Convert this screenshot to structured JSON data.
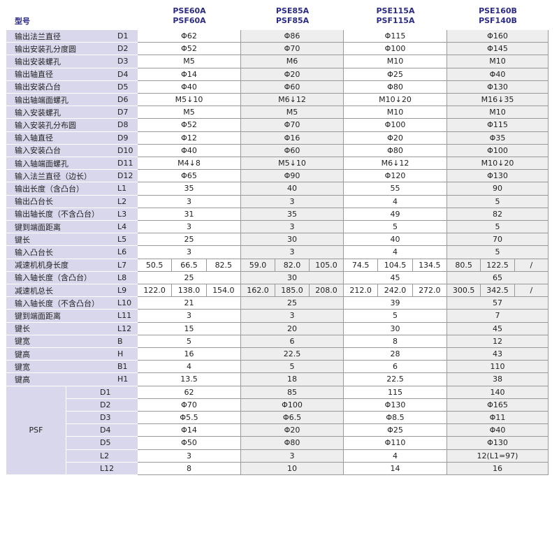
{
  "header": {
    "label": "型号",
    "models": [
      [
        "PSE60A",
        "PSF60A"
      ],
      [
        "PSE85A",
        "PSF85A"
      ],
      [
        "PSE115A",
        "PSF115A"
      ],
      [
        "PSE160B",
        "PSF140B"
      ]
    ]
  },
  "rows": [
    {
      "name": "输出法兰直径",
      "code": "D1",
      "values": [
        "Φ62",
        "Φ86",
        "Φ115",
        "Φ160"
      ]
    },
    {
      "name": "输出安装孔分度圆",
      "code": "D2",
      "values": [
        "Φ52",
        "Φ70",
        "Φ100",
        "Φ145"
      ]
    },
    {
      "name": "输出安装螺孔",
      "code": "D3",
      "values": [
        "M5",
        "M6",
        "M10",
        "M10"
      ]
    },
    {
      "name": "输出轴直径",
      "code": "D4",
      "values": [
        "Φ14",
        "Φ20",
        "Φ25",
        "Φ40"
      ]
    },
    {
      "name": "输出安装凸台",
      "code": "D5",
      "values": [
        "Φ40",
        "Φ60",
        "Φ80",
        "Φ130"
      ]
    },
    {
      "name": "输出轴端面螺孔",
      "code": "D6",
      "values": [
        "M5↓10",
        "M6↓12",
        "M10↓20",
        "M16↓35"
      ]
    },
    {
      "name": "输入安装螺孔",
      "code": "D7",
      "values": [
        "M5",
        "M5",
        "M10",
        "M10"
      ]
    },
    {
      "name": "输入安装孔分布圆",
      "code": "D8",
      "values": [
        "Φ52",
        "Φ70",
        "Φ100",
        "Φ115"
      ]
    },
    {
      "name": "输入轴直径",
      "code": "D9",
      "values": [
        "Φ12",
        "Φ16",
        "Φ20",
        "Φ35"
      ]
    },
    {
      "name": "输入安装凸台",
      "code": "D10",
      "values": [
        "Φ40",
        "Φ60",
        "Φ80",
        "Φ100"
      ]
    },
    {
      "name": "输入轴端面螺孔",
      "code": "D11",
      "values": [
        "M4↓8",
        "M5↓10",
        "M6↓12",
        "M10↓20"
      ]
    },
    {
      "name": "输入法兰直径（边长）",
      "code": "D12",
      "values": [
        "Φ65",
        "Φ90",
        "Φ120",
        "Φ130"
      ]
    },
    {
      "name": "输出长度（含凸台）",
      "code": "L1",
      "values": [
        "35",
        "40",
        "55",
        "90"
      ]
    },
    {
      "name": "输出凸台长",
      "code": "L2",
      "values": [
        "3",
        "3",
        "4",
        "5"
      ]
    },
    {
      "name": "输出轴长度（不含凸台）",
      "code": "L3",
      "values": [
        "31",
        "35",
        "49",
        "82"
      ]
    },
    {
      "name": "键到端面距离",
      "code": "L4",
      "values": [
        "3",
        "3",
        "5",
        "5"
      ]
    },
    {
      "name": "键长",
      "code": "L5",
      "values": [
        "25",
        "30",
        "40",
        "70"
      ]
    },
    {
      "name": "输入凸台长",
      "code": "L6",
      "values": [
        "3",
        "3",
        "4",
        "5"
      ]
    },
    {
      "name": "减速机机身长度",
      "code": "L7",
      "values": [
        [
          "50.5",
          "66.5",
          "82.5"
        ],
        [
          "59.0",
          "82.0",
          "105.0"
        ],
        [
          "74.5",
          "104.5",
          "134.5"
        ],
        [
          "80.5",
          "122.5",
          "/"
        ]
      ]
    },
    {
      "name": "输入轴长度（含凸台）",
      "code": "L8",
      "values": [
        "25",
        "30",
        "45",
        "65"
      ]
    },
    {
      "name": "减速机总长",
      "code": "L9",
      "values": [
        [
          "122.0",
          "138.0",
          "154.0"
        ],
        [
          "162.0",
          "185.0",
          "208.0"
        ],
        [
          "212.0",
          "242.0",
          "272.0"
        ],
        [
          "300.5",
          "342.5",
          "/"
        ]
      ]
    },
    {
      "name": "输入轴长度（不含凸台）",
      "code": "L10",
      "values": [
        "21",
        "25",
        "39",
        "57"
      ]
    },
    {
      "name": "键到端面距离",
      "code": "L11",
      "values": [
        "3",
        "3",
        "5",
        "7"
      ]
    },
    {
      "name": "键长",
      "code": "L12",
      "values": [
        "15",
        "20",
        "30",
        "45"
      ]
    },
    {
      "name": "键宽",
      "code": "B",
      "values": [
        "5",
        "6",
        "8",
        "12"
      ]
    },
    {
      "name": "键高",
      "code": "H",
      "values": [
        "16",
        "22.5",
        "28",
        "43"
      ]
    },
    {
      "name": "键宽",
      "code": "B1",
      "values": [
        "4",
        "5",
        "6",
        "110"
      ]
    },
    {
      "name": "键高",
      "code": "H1",
      "values": [
        "13.5",
        "18",
        "22.5",
        "38"
      ]
    }
  ],
  "psf": {
    "label": "PSF",
    "rows": [
      {
        "code": "D1",
        "values": [
          "62",
          "85",
          "115",
          "140"
        ]
      },
      {
        "code": "D2",
        "values": [
          "Φ70",
          "Φ100",
          "Φ130",
          "Φ165"
        ]
      },
      {
        "code": "D3",
        "values": [
          "Φ5.5",
          "Φ6.5",
          "Φ8.5",
          "Φ11"
        ]
      },
      {
        "code": "D4",
        "values": [
          "Φ14",
          "Φ20",
          "Φ25",
          "Φ40"
        ]
      },
      {
        "code": "D5",
        "values": [
          "Φ50",
          "Φ80",
          "Φ110",
          "Φ130"
        ]
      },
      {
        "code": "L2",
        "values": [
          "3",
          "3",
          "4",
          "12(L1=97)"
        ]
      },
      {
        "code": "L12",
        "values": [
          "8",
          "10",
          "14",
          "16"
        ]
      }
    ]
  }
}
